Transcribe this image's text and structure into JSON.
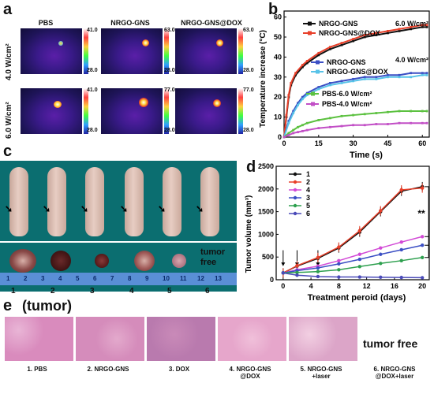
{
  "panels": {
    "a": "a",
    "b": "b",
    "c": "c",
    "d": "d",
    "e": "e"
  },
  "panel_a": {
    "columns": [
      "PBS",
      "NRGO-GNS",
      "NRGO-GNS@DOX"
    ],
    "rows": [
      "4.0 W/cm²",
      "6.0 W/cm²"
    ],
    "colorbars": [
      {
        "max": "41.0",
        "min": "28.0"
      },
      {
        "max": "63.0",
        "min": "28.0"
      },
      {
        "max": "63.0",
        "min": "28.0"
      },
      {
        "max": "41.0",
        "min": "28.0"
      },
      {
        "max": "77.0",
        "min": "28.0"
      },
      {
        "max": "77.0",
        "min": "28.0"
      }
    ]
  },
  "panel_b": {
    "ylabel": "Temperature increase (°C)",
    "xlabel": "Time (s)",
    "annot_6": "6.0 W/cm²",
    "annot_4": "4.0 W/cm²",
    "x_ticks": [
      "0",
      "15",
      "30",
      "45",
      "60"
    ],
    "y_ticks": [
      "0",
      "10",
      "20",
      "30",
      "40",
      "50",
      "60"
    ]
  },
  "panel_c": {
    "mouse_labels": [
      "1",
      "2",
      "3",
      "4",
      "5",
      "6"
    ],
    "tumor_free": "tumor\nfree",
    "ruler_numbers": [
      "1",
      "2",
      "3",
      "4",
      "5",
      "6",
      "7",
      "8",
      "9",
      "10",
      "11",
      "12",
      "13"
    ]
  },
  "panel_d": {
    "ylabel": "Tumor volume (mm³)",
    "xlabel": "Treatment peroid (days)",
    "x_ticks": [
      "0",
      "4",
      "8",
      "12",
      "16",
      "20"
    ],
    "y_ticks": [
      "0",
      "500",
      "1000",
      "1500",
      "2000",
      "2500"
    ],
    "significance": "**"
  },
  "panel_e": {
    "title": "(tumor)",
    "tumor_free": "tumor free",
    "labels": [
      "1. PBS",
      "2. NRGO-GNS",
      "3. DOX",
      "4. NRGO-GNS\n@DOX",
      "5. NRGO-GNS\n+laser",
      "6. NRGO-GNS\n@DOX+laser"
    ]
  },
  "colors": {
    "teal_bg": "#0b6e70",
    "ruler": "#5a8fd6",
    "he_pink": "#d98bbd",
    "he_purple": "#7a3f8f"
  },
  "chart_data": [
    {
      "type": "line",
      "xlabel": "Time (s)",
      "ylabel": "Temperature increase (°C)",
      "xlim": [
        0,
        63
      ],
      "ylim": [
        0,
        63
      ],
      "series": [
        {
          "name": "NRGO-GNS",
          "color": "#111111",
          "x": [
            0,
            1,
            2,
            3,
            5,
            8,
            10,
            15,
            20,
            25,
            30,
            35,
            40,
            45,
            50,
            55,
            60,
            62
          ],
          "y": [
            0,
            10,
            20,
            26,
            31,
            35,
            37,
            41,
            44,
            46,
            48,
            50,
            51,
            52,
            53,
            54,
            55,
            55
          ]
        },
        {
          "name": "NRGO-GNS@DOX",
          "color": "#e8402a",
          "x": [
            0,
            1,
            2,
            3,
            5,
            8,
            10,
            15,
            20,
            25,
            30,
            35,
            40,
            45,
            50,
            55,
            60,
            62
          ],
          "y": [
            0,
            11,
            21,
            27,
            32,
            36,
            38,
            42,
            45,
            47,
            49,
            51,
            52,
            53,
            54,
            55,
            56,
            56
          ]
        },
        {
          "name": "NRGO-GNS",
          "color": "#3b4fc4",
          "x": [
            0,
            2,
            4,
            6,
            8,
            10,
            15,
            20,
            25,
            30,
            35,
            40,
            45,
            50,
            55,
            60,
            62
          ],
          "y": [
            0,
            8,
            13,
            17,
            20,
            22,
            25,
            27,
            28,
            29,
            30,
            30,
            31,
            31,
            32,
            32,
            32
          ]
        },
        {
          "name": "NRGO-GNS@DOX",
          "color": "#58c3e8",
          "x": [
            0,
            2,
            4,
            6,
            8,
            10,
            15,
            20,
            25,
            30,
            35,
            40,
            45,
            50,
            55,
            60,
            62
          ],
          "y": [
            0,
            7,
            12,
            16,
            19,
            21,
            24,
            26,
            27,
            28,
            29,
            29,
            30,
            30,
            30,
            31,
            31
          ]
        },
        {
          "name": "PBS-6.0 W/cm²",
          "color": "#5cc140",
          "x": [
            0,
            2,
            4,
            6,
            8,
            10,
            15,
            20,
            25,
            30,
            35,
            40,
            45,
            50,
            55,
            60,
            62
          ],
          "y": [
            0,
            2,
            3.5,
            5,
            6,
            7,
            8.5,
            9.5,
            10.5,
            11,
            11.5,
            12,
            12.5,
            13,
            13,
            13,
            13
          ]
        },
        {
          "name": "PBS-4.0 W/cm²",
          "color": "#c24fc6",
          "x": [
            0,
            2,
            4,
            6,
            8,
            10,
            15,
            20,
            25,
            30,
            35,
            40,
            45,
            50,
            55,
            60,
            62
          ],
          "y": [
            0,
            1,
            2,
            2.5,
            3,
            3.5,
            4.5,
            5,
            5.5,
            6,
            6,
            6.5,
            6.5,
            7,
            7,
            7,
            7
          ]
        }
      ]
    },
    {
      "type": "line",
      "xlabel": "Treatment peroid (days)",
      "ylabel": "Tumor volume (mm³)",
      "xlim": [
        -1,
        21
      ],
      "ylim": [
        0,
        2500
      ],
      "x": [
        0,
        2,
        5,
        8,
        11,
        14,
        17,
        20
      ],
      "series": [
        {
          "name": "1",
          "color": "#111111",
          "values": [
            150,
            300,
            470,
            700,
            1050,
            1500,
            1950,
            2050
          ]
        },
        {
          "name": "2",
          "color": "#e8402a",
          "values": [
            150,
            310,
            490,
            720,
            1080,
            1520,
            1980,
            2020
          ]
        },
        {
          "name": "4",
          "color": "#d24ad6",
          "values": [
            150,
            220,
            300,
            420,
            560,
            700,
            830,
            950
          ]
        },
        {
          "name": "3",
          "color": "#3b4fc4",
          "values": [
            150,
            200,
            260,
            350,
            450,
            560,
            660,
            760
          ]
        },
        {
          "name": "5",
          "color": "#2ea04f",
          "values": [
            150,
            160,
            180,
            220,
            290,
            360,
            420,
            490
          ]
        },
        {
          "name": "6",
          "color": "#4a4ab8",
          "values": [
            150,
            100,
            70,
            60,
            60,
            55,
            50,
            45
          ]
        }
      ],
      "arrows_at_days": [
        0,
        2,
        5
      ],
      "annotation": "**"
    }
  ]
}
